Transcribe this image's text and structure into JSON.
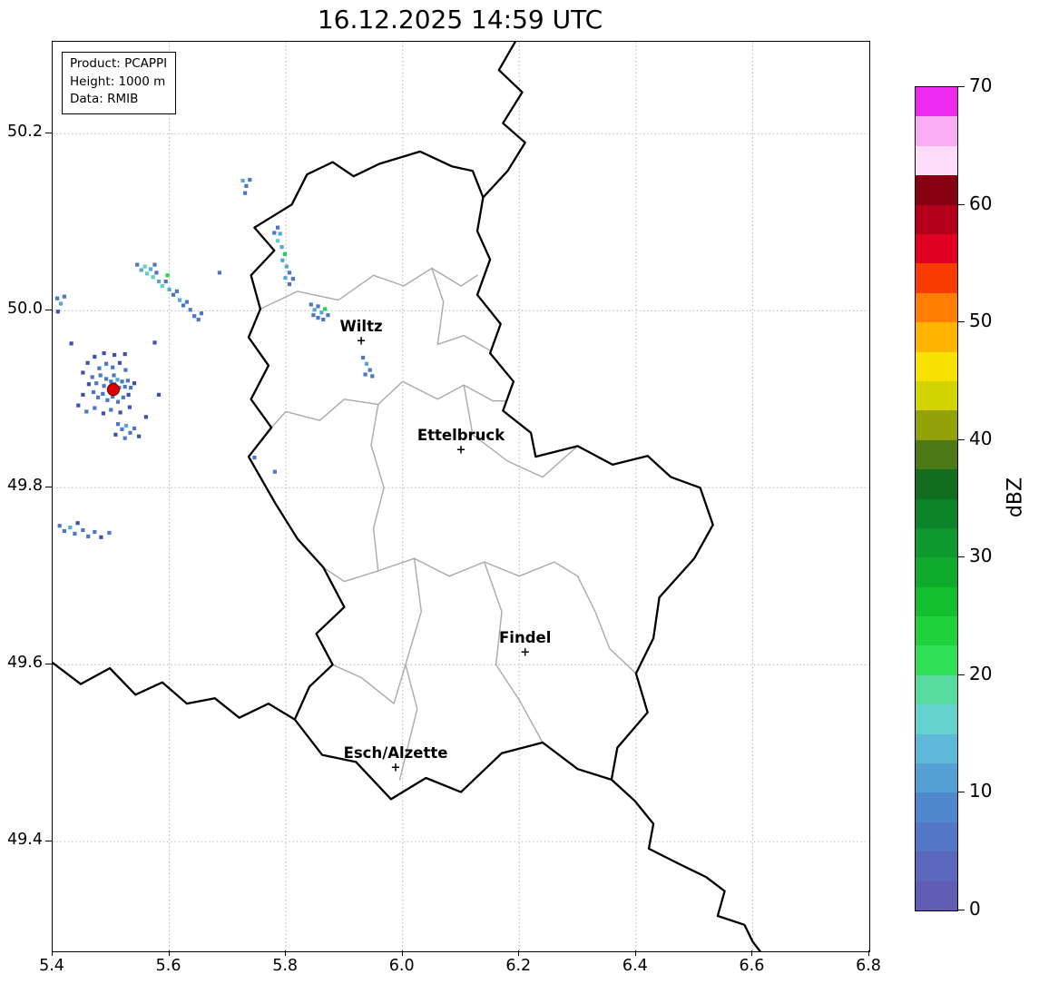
{
  "title": "16.12.2025 14:59 UTC",
  "info_box": {
    "lines": [
      "Product: PCAPPI",
      "Height: 1000 m",
      "Data: RMIB"
    ]
  },
  "axes": {
    "lon_range": [
      5.4,
      6.8
    ],
    "lat_range": [
      49.276,
      50.304
    ],
    "x_ticks": [
      {
        "value": 5.4,
        "label": "5.4"
      },
      {
        "value": 5.6,
        "label": "5.6"
      },
      {
        "value": 5.8,
        "label": "5.8"
      },
      {
        "value": 6.0,
        "label": "6.0"
      },
      {
        "value": 6.2,
        "label": "6.2"
      },
      {
        "value": 6.4,
        "label": "6.4"
      },
      {
        "value": 6.6,
        "label": "6.6"
      },
      {
        "value": 6.8,
        "label": "6.8"
      }
    ],
    "y_ticks": [
      {
        "value": 50.2,
        "label": "50.2"
      },
      {
        "value": 50.0,
        "label": "50.0"
      },
      {
        "value": 49.8,
        "label": "49.8"
      },
      {
        "value": 49.6,
        "label": "49.6"
      },
      {
        "value": 49.4,
        "label": "49.4"
      }
    ]
  },
  "colorbar": {
    "label": "dBZ",
    "vmin": 0,
    "vmax": 70,
    "ticks": [
      {
        "value": 0,
        "label": "0"
      },
      {
        "value": 10,
        "label": "10"
      },
      {
        "value": 20,
        "label": "20"
      },
      {
        "value": 30,
        "label": "30"
      },
      {
        "value": 40,
        "label": "40"
      },
      {
        "value": 50,
        "label": "50"
      },
      {
        "value": 60,
        "label": "60"
      },
      {
        "value": 70,
        "label": "70"
      }
    ],
    "colors": [
      "#625db4",
      "#5b68be",
      "#5377c6",
      "#4f88cc",
      "#54a0d4",
      "#5fbada",
      "#63d2cd",
      "#55dc9e",
      "#30e056",
      "#1fd23b",
      "#14bf2f",
      "#0fab2d",
      "#0d992e",
      "#0b8528",
      "#116e1e",
      "#4d7a16",
      "#93a208",
      "#d2d400",
      "#f8e000",
      "#ffb400",
      "#ff7d00",
      "#f83c00",
      "#e00022",
      "#b2001a",
      "#870011",
      "#fcdcf8",
      "#f9aef4",
      "#ee2af0"
    ]
  },
  "map": {
    "marker_glyph": "+",
    "cities": [
      {
        "name": "Wiltz",
        "lon": 5.929,
        "lat": 49.965
      },
      {
        "name": "Ettelbruck",
        "lon": 6.1,
        "lat": 49.842
      },
      {
        "name": "Findel",
        "lon": 6.21,
        "lat": 49.614
      },
      {
        "name": "Esch/Alzette",
        "lon": 5.988,
        "lat": 49.483
      }
    ],
    "borders": {
      "country": [
        [
          [
            6.03,
            50.18
          ],
          [
            6.085,
            50.163
          ],
          [
            6.12,
            50.158
          ],
          [
            6.138,
            50.128
          ],
          [
            6.128,
            50.09
          ],
          [
            6.15,
            50.058
          ],
          [
            6.128,
            50.018
          ],
          [
            6.168,
            49.985
          ],
          [
            6.15,
            49.952
          ],
          [
            6.19,
            49.92
          ],
          [
            6.172,
            49.887
          ],
          [
            6.22,
            49.862
          ],
          [
            6.228,
            49.835
          ],
          [
            6.3,
            49.847
          ],
          [
            6.36,
            49.826
          ],
          [
            6.42,
            49.836
          ],
          [
            6.46,
            49.812
          ],
          [
            6.51,
            49.8
          ],
          [
            6.532,
            49.758
          ],
          [
            6.5,
            49.72
          ],
          [
            6.44,
            49.676
          ],
          [
            6.43,
            49.63
          ],
          [
            6.4,
            49.59
          ],
          [
            6.42,
            49.546
          ],
          [
            6.368,
            49.506
          ],
          [
            6.358,
            49.47
          ],
          [
            6.3,
            49.482
          ],
          [
            6.24,
            49.512
          ],
          [
            6.17,
            49.5
          ],
          [
            6.1,
            49.456
          ],
          [
            6.04,
            49.472
          ],
          [
            5.98,
            49.448
          ],
          [
            5.92,
            49.49
          ],
          [
            5.862,
            49.498
          ],
          [
            5.815,
            49.538
          ],
          [
            5.84,
            49.575
          ],
          [
            5.88,
            49.6
          ],
          [
            5.852,
            49.635
          ],
          [
            5.9,
            49.665
          ],
          [
            5.864,
            49.71
          ],
          [
            5.82,
            49.742
          ],
          [
            5.782,
            49.782
          ],
          [
            5.736,
            49.835
          ],
          [
            5.775,
            49.868
          ],
          [
            5.74,
            49.9
          ],
          [
            5.77,
            49.938
          ],
          [
            5.736,
            49.97
          ],
          [
            5.756,
            50.002
          ],
          [
            5.74,
            50.04
          ],
          [
            5.78,
            50.068
          ],
          [
            5.746,
            50.094
          ],
          [
            5.81,
            50.12
          ],
          [
            5.836,
            50.154
          ],
          [
            5.88,
            50.168
          ],
          [
            5.916,
            50.152
          ],
          [
            5.96,
            50.166
          ],
          [
            6.03,
            50.18
          ]
        ],
        [
          [
            6.193,
            50.304
          ],
          [
            6.165,
            50.272
          ],
          [
            6.205,
            50.247
          ],
          [
            6.172,
            50.212
          ],
          [
            6.21,
            50.19
          ],
          [
            6.18,
            50.158
          ],
          [
            6.138,
            50.128
          ]
        ],
        [
          [
            5.4,
            49.602
          ],
          [
            5.448,
            49.578
          ],
          [
            5.498,
            49.596
          ],
          [
            5.542,
            49.566
          ],
          [
            5.588,
            49.58
          ],
          [
            5.63,
            49.556
          ],
          [
            5.678,
            49.562
          ],
          [
            5.72,
            49.54
          ],
          [
            5.77,
            49.556
          ],
          [
            5.815,
            49.538
          ]
        ],
        [
          [
            6.358,
            49.47
          ],
          [
            6.398,
            49.446
          ],
          [
            6.43,
            49.42
          ],
          [
            6.422,
            49.392
          ],
          [
            6.47,
            49.376
          ],
          [
            6.52,
            49.36
          ],
          [
            6.552,
            49.344
          ],
          [
            6.54,
            49.316
          ],
          [
            6.586,
            49.306
          ],
          [
            6.6,
            49.287
          ],
          [
            6.615,
            49.274
          ]
        ]
      ],
      "district": [
        [
          [
            5.756,
            50.002
          ],
          [
            5.82,
            50.022
          ],
          [
            5.89,
            50.012
          ],
          [
            5.95,
            50.04
          ],
          [
            6.002,
            50.028
          ],
          [
            6.05,
            50.048
          ],
          [
            6.1,
            50.028
          ],
          [
            6.128,
            50.04
          ]
        ],
        [
          [
            5.775,
            49.868
          ],
          [
            5.8,
            49.886
          ],
          [
            5.858,
            49.876
          ],
          [
            5.9,
            49.9
          ],
          [
            5.958,
            49.894
          ],
          [
            6.0,
            49.92
          ],
          [
            6.06,
            49.9
          ],
          [
            6.105,
            49.916
          ],
          [
            6.155,
            49.898
          ],
          [
            6.178,
            49.898
          ]
        ],
        [
          [
            6.05,
            50.048
          ],
          [
            6.07,
            50.01
          ],
          [
            6.06,
            49.962
          ],
          [
            6.105,
            49.972
          ],
          [
            6.15,
            49.955
          ]
        ],
        [
          [
            5.958,
            49.894
          ],
          [
            5.946,
            49.848
          ],
          [
            5.968,
            49.8
          ],
          [
            5.95,
            49.754
          ],
          [
            5.958,
            49.706
          ]
        ],
        [
          [
            5.864,
            49.71
          ],
          [
            5.9,
            49.694
          ],
          [
            5.958,
            49.706
          ]
        ],
        [
          [
            5.958,
            49.706
          ],
          [
            6.02,
            49.72
          ],
          [
            6.08,
            49.7
          ],
          [
            6.14,
            49.716
          ],
          [
            6.2,
            49.7
          ],
          [
            6.26,
            49.716
          ],
          [
            6.3,
            49.7
          ]
        ],
        [
          [
            6.3,
            49.7
          ],
          [
            6.33,
            49.66
          ],
          [
            6.355,
            49.618
          ],
          [
            6.4,
            49.59
          ]
        ],
        [
          [
            6.105,
            49.916
          ],
          [
            6.12,
            49.86
          ],
          [
            6.18,
            49.83
          ],
          [
            6.24,
            49.812
          ],
          [
            6.3,
            49.847
          ]
        ],
        [
          [
            6.02,
            49.72
          ],
          [
            6.032,
            49.66
          ],
          [
            6.005,
            49.6
          ],
          [
            6.025,
            49.55
          ],
          [
            5.995,
            49.47
          ]
        ],
        [
          [
            6.14,
            49.716
          ],
          [
            6.17,
            49.66
          ],
          [
            6.16,
            49.6
          ],
          [
            6.2,
            49.56
          ],
          [
            6.24,
            49.512
          ]
        ],
        [
          [
            5.88,
            49.6
          ],
          [
            5.93,
            49.585
          ],
          [
            5.985,
            49.556
          ],
          [
            6.005,
            49.6
          ]
        ]
      ]
    }
  },
  "radar": {
    "site": {
      "lon": 5.504,
      "lat": 49.911,
      "color": "#dd0000"
    },
    "palette": [
      "#3d52b0",
      "#4c77c6",
      "#55a9d6",
      "#5bd2c5",
      "#27d348"
    ],
    "echoes": [
      [
        5.468,
        49.925,
        1
      ],
      [
        5.475,
        49.918,
        1
      ],
      [
        5.482,
        49.927,
        1
      ],
      [
        5.488,
        49.915,
        1
      ],
      [
        5.492,
        49.923,
        1
      ],
      [
        5.497,
        49.912,
        2
      ],
      [
        5.5,
        49.92,
        1
      ],
      [
        5.505,
        49.927,
        1
      ],
      [
        5.506,
        49.917,
        1
      ],
      [
        5.511,
        49.922,
        2
      ],
      [
        5.514,
        49.913,
        1
      ],
      [
        5.519,
        49.92,
        1
      ],
      [
        5.524,
        49.914,
        1
      ],
      [
        5.529,
        49.921,
        1
      ],
      [
        5.534,
        49.913,
        1
      ],
      [
        5.54,
        49.918,
        0
      ],
      [
        5.462,
        49.917,
        0
      ],
      [
        5.47,
        49.908,
        1
      ],
      [
        5.478,
        49.902,
        1
      ],
      [
        5.486,
        49.906,
        1
      ],
      [
        5.494,
        49.899,
        1
      ],
      [
        5.503,
        49.903,
        1
      ],
      [
        5.512,
        49.897,
        1
      ],
      [
        5.521,
        49.902,
        1
      ],
      [
        5.53,
        49.905,
        0
      ],
      [
        5.48,
        49.935,
        1
      ],
      [
        5.492,
        49.94,
        1
      ],
      [
        5.503,
        49.936,
        1
      ],
      [
        5.515,
        49.941,
        0
      ],
      [
        5.525,
        49.933,
        1
      ],
      [
        5.452,
        49.93,
        0
      ],
      [
        5.46,
        49.941,
        0
      ],
      [
        5.472,
        49.948,
        0
      ],
      [
        5.488,
        49.952,
        0
      ],
      [
        5.506,
        49.95,
        0
      ],
      [
        5.524,
        49.951,
        0
      ],
      [
        5.452,
        49.905,
        0
      ],
      [
        5.444,
        49.893,
        0
      ],
      [
        5.458,
        49.886,
        1
      ],
      [
        5.472,
        49.89,
        1
      ],
      [
        5.487,
        49.884,
        0
      ],
      [
        5.5,
        49.888,
        1
      ],
      [
        5.516,
        49.885,
        0
      ],
      [
        5.532,
        49.891,
        0
      ],
      [
        5.545,
        50.052,
        1
      ],
      [
        5.552,
        50.046,
        2
      ],
      [
        5.558,
        50.05,
        3
      ],
      [
        5.562,
        50.042,
        3
      ],
      [
        5.568,
        50.047,
        2
      ],
      [
        5.572,
        50.038,
        3
      ],
      [
        5.578,
        50.043,
        1
      ],
      [
        5.582,
        50.033,
        2
      ],
      [
        5.588,
        50.028,
        3
      ],
      [
        5.594,
        50.033,
        1
      ],
      [
        5.6,
        50.024,
        2
      ],
      [
        5.607,
        50.018,
        1
      ],
      [
        5.613,
        50.022,
        1
      ],
      [
        5.618,
        50.012,
        2
      ],
      [
        5.624,
        50.006,
        1
      ],
      [
        5.63,
        50.01,
        1
      ],
      [
        5.636,
        50.001,
        1
      ],
      [
        5.643,
        49.994,
        1
      ],
      [
        5.65,
        49.99,
        1
      ],
      [
        5.597,
        50.04,
        4
      ],
      [
        5.575,
        50.052,
        1
      ],
      [
        5.408,
        50.014,
        1
      ],
      [
        5.414,
        50.008,
        2
      ],
      [
        5.42,
        50.016,
        1
      ],
      [
        5.409,
        49.999,
        0
      ],
      [
        5.726,
        50.147,
        2
      ],
      [
        5.732,
        50.141,
        1
      ],
      [
        5.738,
        50.148,
        1
      ],
      [
        5.73,
        50.133,
        1
      ],
      [
        5.786,
        50.094,
        1
      ],
      [
        5.79,
        50.087,
        2
      ],
      [
        5.786,
        50.079,
        3
      ],
      [
        5.793,
        50.072,
        2
      ],
      [
        5.798,
        50.064,
        4
      ],
      [
        5.794,
        50.057,
        2
      ],
      [
        5.801,
        50.05,
        2
      ],
      [
        5.806,
        50.043,
        1
      ],
      [
        5.799,
        50.037,
        2
      ],
      [
        5.806,
        50.03,
        1
      ],
      [
        5.812,
        50.036,
        1
      ],
      [
        5.78,
        50.088,
        1
      ],
      [
        5.843,
        50.007,
        1
      ],
      [
        5.849,
        50.001,
        2
      ],
      [
        5.855,
        50.005,
        1
      ],
      [
        5.861,
        49.998,
        2
      ],
      [
        5.855,
        49.992,
        1
      ],
      [
        5.847,
        49.995,
        1
      ],
      [
        5.867,
        50.002,
        4
      ],
      [
        5.864,
        49.99,
        1
      ],
      [
        5.872,
        49.995,
        1
      ],
      [
        5.932,
        49.947,
        1
      ],
      [
        5.938,
        49.94,
        2
      ],
      [
        5.944,
        49.933,
        1
      ],
      [
        5.936,
        49.928,
        1
      ],
      [
        5.948,
        49.926,
        1
      ],
      [
        5.512,
        49.872,
        1
      ],
      [
        5.519,
        49.866,
        1
      ],
      [
        5.526,
        49.87,
        2
      ],
      [
        5.533,
        49.862,
        1
      ],
      [
        5.54,
        49.867,
        1
      ],
      [
        5.524,
        49.856,
        1
      ],
      [
        5.548,
        49.858,
        0
      ],
      [
        5.508,
        49.86,
        0
      ],
      [
        5.412,
        49.757,
        1
      ],
      [
        5.42,
        49.751,
        1
      ],
      [
        5.43,
        49.755,
        2
      ],
      [
        5.438,
        49.748,
        1
      ],
      [
        5.452,
        49.752,
        1
      ],
      [
        5.461,
        49.745,
        1
      ],
      [
        5.472,
        49.75,
        1
      ],
      [
        5.483,
        49.744,
        0
      ],
      [
        5.497,
        49.749,
        1
      ],
      [
        5.443,
        49.76,
        0
      ],
      [
        5.746,
        49.834,
        1
      ],
      [
        5.781,
        49.818,
        1
      ],
      [
        5.655,
        49.997,
        1
      ],
      [
        5.686,
        50.043,
        1
      ],
      [
        5.582,
        49.905,
        0
      ],
      [
        5.56,
        49.88,
        0
      ],
      [
        5.432,
        49.963,
        0
      ],
      [
        5.575,
        49.964,
        0
      ]
    ]
  }
}
